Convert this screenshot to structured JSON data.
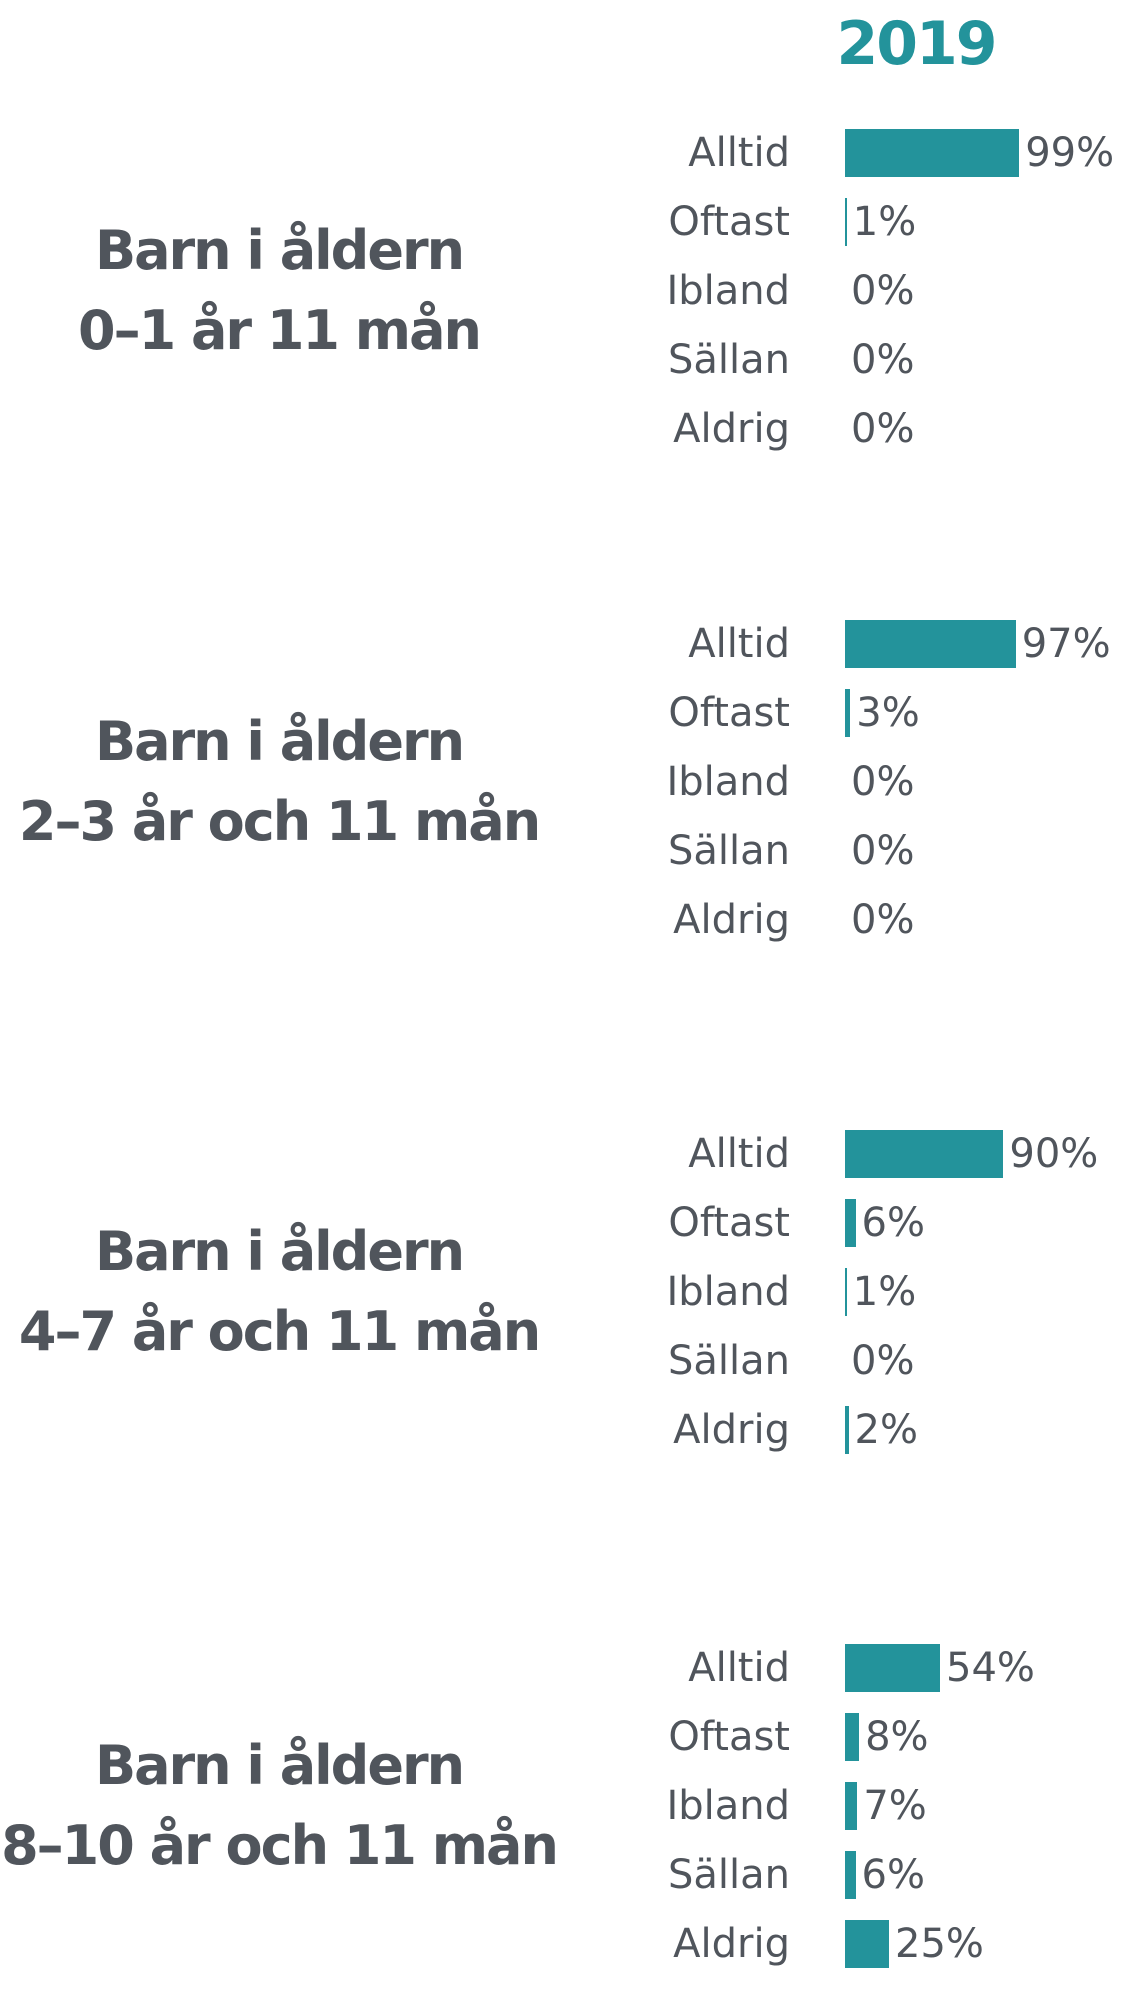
{
  "heading": "2019",
  "chart_data": [
    {
      "type": "bar",
      "title": "Barn i åldern\n0–1 år 11 mån",
      "color": "#23939b",
      "xlim": [
        0,
        100
      ],
      "categories": [
        "Alltid",
        "Oftast",
        "Ibland",
        "Sällan",
        "Aldrig"
      ],
      "values": [
        99,
        1,
        0,
        0,
        0
      ],
      "value_labels": [
        "99%",
        "1%",
        "0%",
        "0%",
        "0%"
      ]
    },
    {
      "type": "bar",
      "title": "Barn i åldern\n2–3 år och 11 mån",
      "color": "#23939b",
      "xlim": [
        0,
        100
      ],
      "categories": [
        "Alltid",
        "Oftast",
        "Ibland",
        "Sällan",
        "Aldrig"
      ],
      "values": [
        97,
        3,
        0,
        0,
        0
      ],
      "value_labels": [
        "97%",
        "3%",
        "0%",
        "0%",
        "0%"
      ]
    },
    {
      "type": "bar",
      "title": "Barn i åldern\n4–7 år och 11 mån",
      "color": "#23939b",
      "xlim": [
        0,
        100
      ],
      "categories": [
        "Alltid",
        "Oftast",
        "Ibland",
        "Sällan",
        "Aldrig"
      ],
      "values": [
        90,
        6,
        1,
        0,
        2
      ],
      "value_labels": [
        "90%",
        "6%",
        "1%",
        "0%",
        "2%"
      ]
    },
    {
      "type": "bar",
      "title": "Barn i åldern\n8–10 år och 11 mån",
      "color": "#23939b",
      "xlim": [
        0,
        100
      ],
      "categories": [
        "Alltid",
        "Oftast",
        "Ibland",
        "Sällan",
        "Aldrig"
      ],
      "values": [
        54,
        8,
        7,
        6,
        25
      ],
      "value_labels": [
        "54%",
        "8%",
        "7%",
        "6%",
        "25%"
      ]
    }
  ]
}
